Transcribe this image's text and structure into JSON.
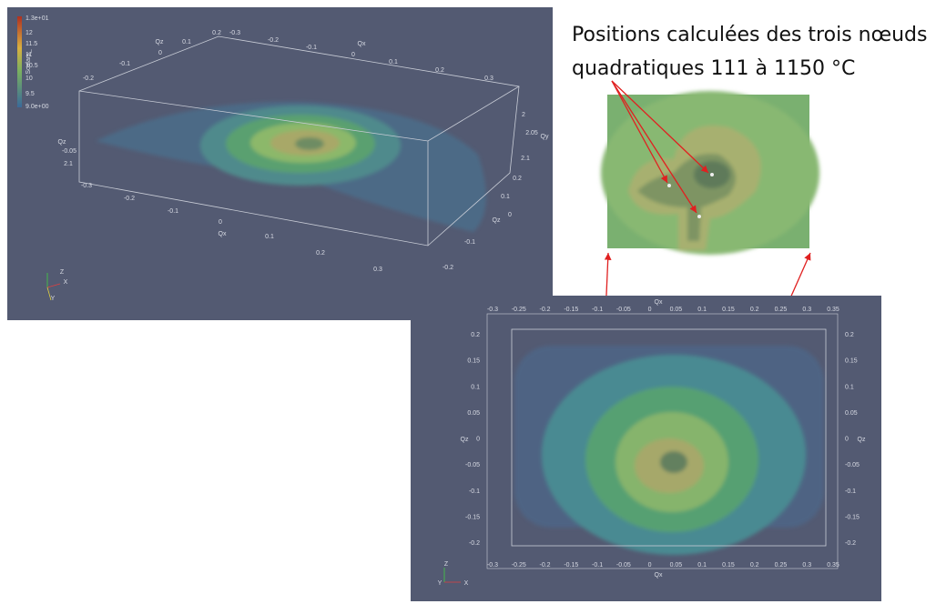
{
  "annotation": {
    "lines": [
      "Positions calculées des trois nœuds",
      "quadratiques 111 à 1150 °C"
    ]
  },
  "view_3d": {
    "colorbar": {
      "title": "Scalars_",
      "labels": [
        "1.3e+01",
        "12",
        "11.5",
        "11",
        "10.5",
        "10",
        "9.5",
        "9.0e+00"
      ]
    },
    "ticks": [
      "-0.2",
      "-0.1",
      "0",
      "Qz",
      "0.1",
      "0.2",
      "-0.3",
      "-0.2",
      "-0.1",
      "0",
      "Qx",
      "0.1",
      "0.2",
      "0.3",
      "Qz",
      "-0.05",
      "2.1",
      "2",
      "2.05",
      "Qy",
      "2.1",
      "-0.3",
      "-0.2",
      "-0.1",
      "0",
      "Qx",
      "0.1",
      "0.2",
      "0.3",
      "0.2",
      "0.1",
      "0",
      "Qz",
      "-0.1",
      "-0.2"
    ],
    "triad": [
      "Z",
      "X",
      "Y"
    ]
  },
  "view_top": {
    "x_label": "Qx",
    "y_label": "Qz",
    "x_ticks": [
      "-0.3",
      "-0.25",
      "-0.2",
      "-0.15",
      "-0.1",
      "-0.05",
      "0",
      "0.05",
      "0.1",
      "0.15",
      "0.2",
      "0.25",
      "0.3",
      "0.35"
    ],
    "y_ticks": [
      "0.2",
      "0.15",
      "0.1",
      "0.05",
      "0",
      "-0.05",
      "-0.1",
      "-0.15",
      "-0.2"
    ],
    "triad": [
      "Z",
      "Y",
      "X"
    ]
  }
}
